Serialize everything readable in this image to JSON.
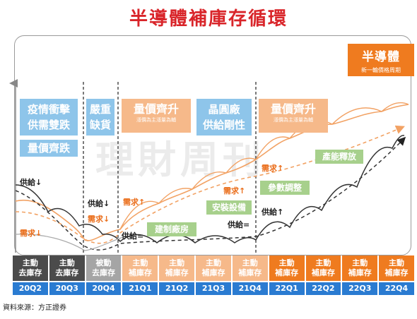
{
  "title": "半導體補庫存循環",
  "brand": {
    "title": "半導體",
    "subtitle": "新一輪價格周期"
  },
  "watermark": "理財周刊",
  "boxes": {
    "b1": "疫情衝擊\n供需雙跌",
    "b2": "量價齊跌",
    "b3": "嚴重\n缺貨",
    "b4": "量價齊升",
    "b4_sub": "漲價為主漲量為輔",
    "b5": "晶圓廠\n供給剛性",
    "b6": "量價齊升",
    "b6_sub": "漲價為主漲量為輔",
    "g1": "建制廠房",
    "g2": "安裝設備",
    "g3": "參數調整",
    "g4": "產能釋放"
  },
  "labels": {
    "supply_down1": "供給↓",
    "demand_down": "需求↓",
    "supply_down2": "供給↓",
    "demand_down2": "需求↓",
    "demand_up1": "需求↑",
    "supply_eq1": "供給=",
    "demand_up2": "需求↑",
    "supply_eq2": "供給=",
    "demand_up3": "需求↑",
    "supply_up": "供給↑"
  },
  "quarters": [
    {
      "l1": "主動",
      "l2": "去庫存",
      "period": "20Q2"
    },
    {
      "l1": "主動",
      "l2": "去庫存",
      "period": "20Q3"
    },
    {
      "l1": "被動",
      "l2": "去庫存",
      "period": "20Q4"
    },
    {
      "l1": "主動",
      "l2": "補庫存",
      "period": "21Q1"
    },
    {
      "l1": "主動",
      "l2": "補庫存",
      "period": "21Q2"
    },
    {
      "l1": "主動",
      "l2": "補庫存",
      "period": "21Q3"
    },
    {
      "l1": "主動",
      "l2": "補庫存",
      "period": "21Q4"
    },
    {
      "l1": "主動",
      "l2": "補庫存",
      "period": "22Q1"
    },
    {
      "l1": "主動",
      "l2": "補庫存",
      "period": "22Q2"
    },
    {
      "l1": "主動",
      "l2": "補庫存",
      "period": "22Q3"
    },
    {
      "l1": "主動",
      "l2": "補庫存",
      "period": "22Q4"
    }
  ],
  "source": "資料來源：方正證券",
  "colors": {
    "title": "#d9252a",
    "orange": "#ef7b1f",
    "peach": "#f6b98a",
    "blue": "#8ec5ea",
    "green": "#a7d08c",
    "dark": "#4b4b4b",
    "gray": "#a5a5a5",
    "year_blue": "#2a7bd1"
  }
}
